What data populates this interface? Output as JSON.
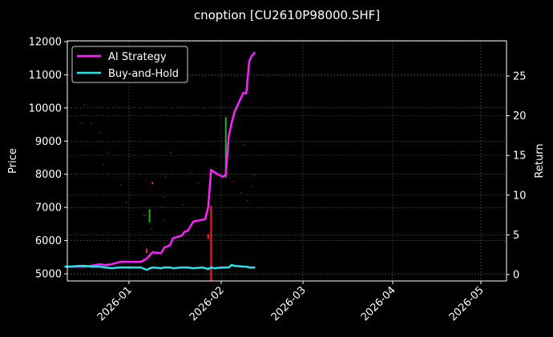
{
  "chart_data": {
    "type": "line",
    "title": "cnoption [CU2610P98000.SHF]",
    "xlabel": "",
    "ylabel": "Price",
    "ylabel_right": "Return",
    "ylim": [
      4780,
      12000
    ],
    "ylim_right": [
      -0.8,
      29.3
    ],
    "x_ticks": [
      "2026-01",
      "2026-02",
      "2026-03",
      "2026-04",
      "2026-05"
    ],
    "y_ticks": [
      5000,
      6000,
      7000,
      8000,
      9000,
      10000,
      11000,
      12000
    ],
    "y_ticks_right": [
      0,
      5,
      10,
      15,
      20,
      25
    ],
    "grid": true,
    "legend_position": "upper left",
    "legend": [
      "AI Strategy",
      "Buy-and-Hold"
    ],
    "series": [
      {
        "name": "AI Strategy",
        "axis": "right",
        "color": "#ff22ff",
        "x": [
          "2025-12-10",
          "2025-12-12",
          "2025-12-15",
          "2025-12-17",
          "2025-12-19",
          "2025-12-22",
          "2025-12-24",
          "2025-12-26",
          "2025-12-29",
          "2025-12-31",
          "2026-01-05",
          "2026-01-07",
          "2026-01-09",
          "2026-01-12",
          "2026-01-13",
          "2026-01-15",
          "2026-01-16",
          "2026-01-19",
          "2026-01-20",
          "2026-01-21",
          "2026-01-23",
          "2026-01-26",
          "2026-01-27",
          "2026-01-28",
          "2026-01-29",
          "2026-01-30",
          "2026-02-02",
          "2026-02-03",
          "2026-02-04",
          "2026-02-05",
          "2026-02-06",
          "2026-02-09",
          "2026-02-10",
          "2026-02-11",
          "2026-02-12",
          "2026-02-13"
        ],
        "values": [
          1.0,
          1.0,
          1.0,
          1.0,
          1.1,
          1.3,
          1.2,
          1.3,
          1.6,
          1.6,
          1.6,
          2.0,
          2.8,
          2.7,
          3.4,
          3.7,
          4.6,
          4.9,
          5.4,
          5.5,
          6.7,
          6.9,
          7.0,
          8.5,
          13.2,
          12.9,
          12.3,
          12.6,
          17.4,
          19.1,
          20.5,
          22.9,
          22.8,
          26.9,
          27.6,
          28.0
        ]
      },
      {
        "name": "Buy-and-Hold",
        "axis": "right",
        "color": "#22e5f0",
        "x": [
          "2025-12-10",
          "2025-12-12",
          "2025-12-15",
          "2025-12-17",
          "2025-12-19",
          "2025-12-22",
          "2025-12-24",
          "2025-12-26",
          "2025-12-29",
          "2025-12-31",
          "2026-01-05",
          "2026-01-07",
          "2026-01-09",
          "2026-01-12",
          "2026-01-13",
          "2026-01-15",
          "2026-01-16",
          "2026-01-19",
          "2026-01-20",
          "2026-01-21",
          "2026-01-23",
          "2026-01-26",
          "2026-01-27",
          "2026-01-28",
          "2026-01-29",
          "2026-01-30",
          "2026-02-02",
          "2026-02-03",
          "2026-02-04",
          "2026-02-05",
          "2026-02-06",
          "2026-02-09",
          "2026-02-10",
          "2026-02-11",
          "2026-02-12",
          "2026-02-13"
        ],
        "values": [
          1.0,
          1.0,
          1.1,
          1.1,
          1.0,
          1.0,
          0.9,
          0.8,
          0.9,
          0.9,
          0.9,
          0.6,
          0.9,
          0.8,
          0.9,
          0.9,
          0.8,
          0.9,
          0.9,
          0.9,
          0.8,
          0.9,
          0.8,
          0.7,
          0.9,
          0.8,
          0.9,
          0.9,
          0.9,
          1.2,
          1.1,
          1.0,
          1.0,
          0.9,
          0.9,
          0.9
        ]
      }
    ],
    "candles": {
      "axis": "left",
      "note": "faint OHLC price marks; visible prominent ones listed",
      "items": [
        {
          "date": "2026-01-08",
          "low": 6550,
          "high": 6950,
          "color": "#1db31d"
        },
        {
          "date": "2026-01-09",
          "low": 7700,
          "high": 7770,
          "color": "#ff2020"
        },
        {
          "date": "2026-01-07",
          "low": 5620,
          "high": 5760,
          "color": "#ff2020"
        },
        {
          "date": "2026-01-28",
          "low": 6050,
          "high": 6200,
          "color": "#ff2020"
        },
        {
          "date": "2026-01-29",
          "low": 4780,
          "high": 7050,
          "color": "#ff2020"
        },
        {
          "date": "2026-02-03",
          "low": 7900,
          "high": 9720,
          "color": "#1db31d"
        }
      ]
    }
  }
}
